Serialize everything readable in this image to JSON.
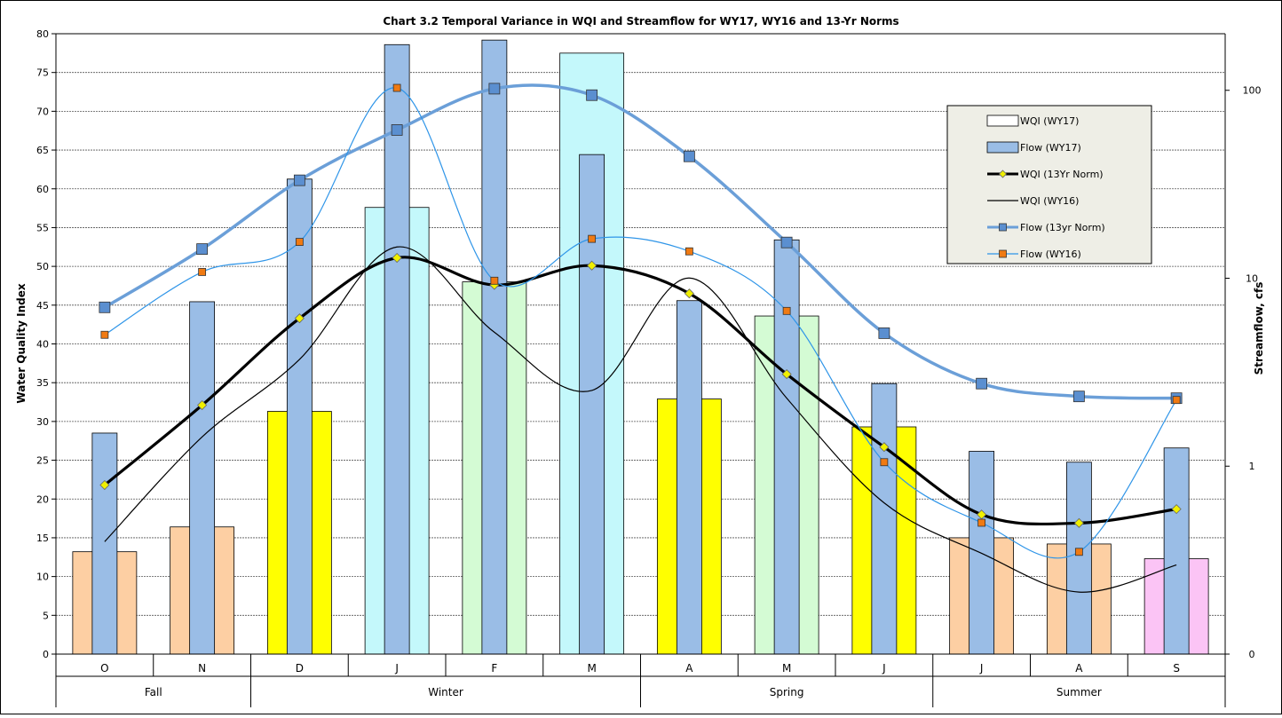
{
  "chart_data": {
    "type": "bar",
    "title": "Chart 3.2  Temporal Variance in WQI and Streamflow for WY17, WY16 and 13-Yr Norms",
    "ylabel": "Water Quality Index",
    "y2label": "Streamflow, cfs",
    "ylim": [
      0,
      80
    ],
    "y_ticks": [
      0,
      5,
      10,
      15,
      20,
      25,
      30,
      35,
      40,
      45,
      50,
      55,
      60,
      65,
      70,
      75,
      80
    ],
    "y2_scale": "log",
    "y2lim": [
      0.1,
      200
    ],
    "y2_ticks": [
      {
        "value": 0.1,
        "label": "0"
      },
      {
        "value": 1,
        "label": "1"
      },
      {
        "value": 10,
        "label": "10"
      },
      {
        "value": 100,
        "label": "100"
      }
    ],
    "grid": true,
    "legend_position": "right",
    "categories": [
      "O",
      "N",
      "D",
      "J",
      "F",
      "M",
      "A",
      "M",
      "J",
      "J",
      "A",
      "S"
    ],
    "seasons": [
      {
        "label": "Fall",
        "span": 2
      },
      {
        "label": "Winter",
        "span": 4
      },
      {
        "label": "Spring",
        "span": 3
      },
      {
        "label": "Summer",
        "span": 3
      }
    ],
    "bar_colors": [
      "#fdcfa3",
      "#fdcfa3",
      "#ffff00",
      "#c4f8fb",
      "#d4fbd4",
      "#c4f8fb",
      "#ffff00",
      "#d4fbd4",
      "#ffff00",
      "#fdcfa3",
      "#fdcfa3",
      "#fbc4f5"
    ],
    "series": [
      {
        "name": "WQI (WY17)",
        "kind": "bar",
        "axis": "left",
        "values": [
          13.2,
          16.4,
          31.3,
          57.6,
          48.0,
          77.5,
          32.9,
          43.6,
          29.3,
          15.0,
          14.2,
          12.3
        ]
      },
      {
        "name": "Flow (WY17)",
        "kind": "bar",
        "axis": "right",
        "color": "#9abde6",
        "values": [
          1.5,
          7.5,
          33.7,
          175,
          185,
          45.5,
          7.6,
          16.0,
          2.75,
          1.2,
          1.05,
          1.25
        ]
      },
      {
        "name": "WQI (13Yr Norm)",
        "kind": "line",
        "axis": "left",
        "color": "#000000",
        "marker": "diamond",
        "marker_color": "#f0f000",
        "values": [
          21.8,
          32.1,
          43.3,
          51.1,
          47.6,
          50.1,
          46.5,
          36.1,
          26.7,
          18.0,
          16.9,
          18.7
        ]
      },
      {
        "name": "WQI (WY16)",
        "kind": "line",
        "axis": "left",
        "color": "#000000",
        "values": [
          14.5,
          28.0,
          38.0,
          52.5,
          41.5,
          34.0,
          48.5,
          33.0,
          19.5,
          13.0,
          8.0,
          11.5
        ]
      },
      {
        "name": "Flow (13yr Norm)",
        "kind": "line",
        "axis": "right",
        "color": "#6b9fd8",
        "marker": "square",
        "marker_color": "#5b8fd0",
        "values": [
          7.0,
          14.3,
          33.2,
          61.5,
          102,
          94.2,
          44.5,
          15.5,
          5.1,
          2.75,
          2.35,
          2.3
        ]
      },
      {
        "name": "Flow (WY16)",
        "kind": "line",
        "axis": "right",
        "color": "#2f95e8",
        "marker": "square",
        "marker_color": "#f07a12",
        "values": [
          5.0,
          10.8,
          15.6,
          103,
          9.7,
          16.2,
          13.9,
          6.7,
          1.05,
          0.5,
          0.35,
          2.25
        ]
      }
    ]
  }
}
